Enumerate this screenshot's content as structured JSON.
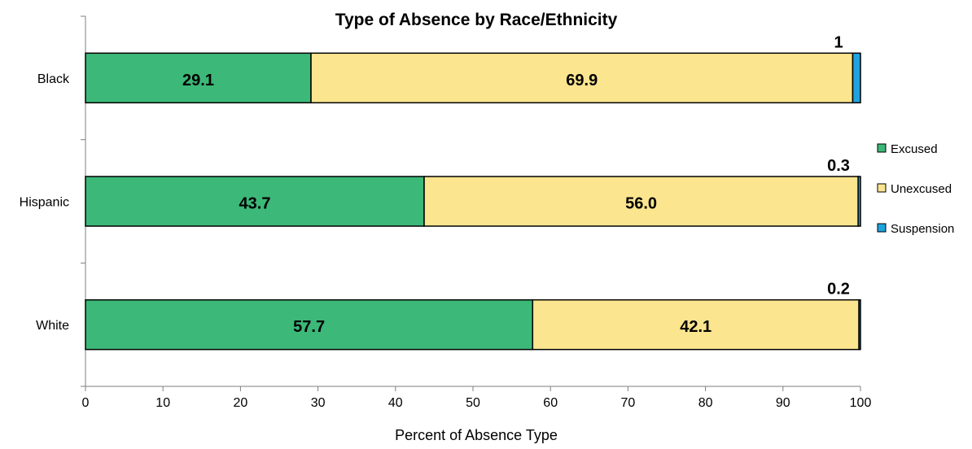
{
  "chart_data": {
    "type": "bar",
    "orientation": "horizontal",
    "stacked": true,
    "title": "Type of Absence by Race/Ethnicity",
    "xlabel": "Percent of Absence Type",
    "ylabel": "",
    "xlim": [
      0,
      100
    ],
    "xticks": [
      0,
      10,
      20,
      30,
      40,
      50,
      60,
      70,
      80,
      90,
      100
    ],
    "categories": [
      "Black",
      "Hispanic",
      "White"
    ],
    "series": [
      {
        "name": "Excused",
        "color": "#3cb878",
        "values": [
          29.1,
          43.7,
          57.7
        ],
        "labels": [
          "29.1",
          "43.7",
          "57.7"
        ]
      },
      {
        "name": "Unexcused",
        "color": "#fbe58f",
        "values": [
          69.9,
          56.0,
          42.1
        ],
        "labels": [
          "69.9",
          "56.0",
          "42.1"
        ]
      },
      {
        "name": "Suspension",
        "color": "#1fa3e0",
        "values": [
          1,
          0.3,
          0.2
        ],
        "labels": [
          "1",
          "0.3",
          "0.2"
        ]
      }
    ],
    "legend_position": "right",
    "grid": false
  }
}
